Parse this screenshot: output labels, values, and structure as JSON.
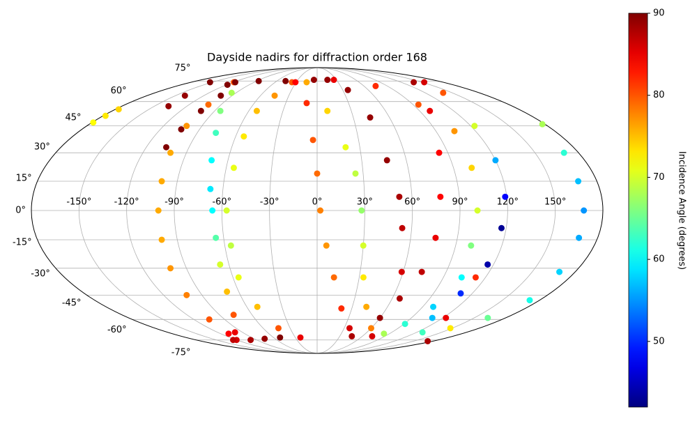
{
  "chart_data": {
    "type": "scatter",
    "projection": "mollweide",
    "title": "Dayside nadirs for diffraction order 168",
    "colorbar_label": "Incidence Angle (degrees)",
    "colormap": "jet",
    "grid": true,
    "xlim": [
      -180,
      180
    ],
    "ylim": [
      -90,
      90
    ],
    "clim": [
      42,
      90
    ],
    "xticks": [
      {
        "value": -150,
        "label": "-150°"
      },
      {
        "value": -120,
        "label": "-120°"
      },
      {
        "value": -90,
        "label": "-90°"
      },
      {
        "value": -60,
        "label": "-60°"
      },
      {
        "value": -30,
        "label": "-30°"
      },
      {
        "value": 0,
        "label": "0°"
      },
      {
        "value": 30,
        "label": "30°"
      },
      {
        "value": 60,
        "label": "60°"
      },
      {
        "value": 90,
        "label": "90°"
      },
      {
        "value": 120,
        "label": "120°"
      },
      {
        "value": 150,
        "label": "150°"
      }
    ],
    "yticks": [
      {
        "value": -75,
        "label": "-75°"
      },
      {
        "value": -60,
        "label": "-60°"
      },
      {
        "value": -45,
        "label": "-45°"
      },
      {
        "value": -30,
        "label": "-30°"
      },
      {
        "value": -15,
        "label": "-15°"
      },
      {
        "value": 0,
        "label": "0°"
      },
      {
        "value": 15,
        "label": "15°"
      },
      {
        "value": 30,
        "label": "30°"
      },
      {
        "value": 45,
        "label": "45°"
      },
      {
        "value": 60,
        "label": "60°"
      },
      {
        "value": 75,
        "label": "75°"
      }
    ],
    "cticks": [
      50,
      60,
      70,
      80,
      90
    ],
    "x": [
      -119,
      -102,
      -102,
      -101,
      -100,
      -100,
      -100,
      -101,
      -102,
      -105,
      -110,
      -120,
      -99,
      -75,
      -51,
      -137,
      -140,
      -153,
      -106,
      -104,
      -102,
      -102,
      -117,
      -179,
      -178,
      -177,
      -95,
      -85,
      -76,
      -71,
      -68,
      -66,
      -65,
      -66,
      -69,
      -77,
      -99,
      -125,
      -36,
      -45,
      -53,
      -54,
      -55,
      -57,
      -56,
      -56,
      -51,
      -43,
      -23,
      -31,
      -10,
      -3,
      0,
      2,
      6,
      12,
      21,
      36,
      46,
      -15,
      9,
      20,
      25,
      28,
      30,
      33,
      42,
      60,
      73,
      16,
      36,
      44,
      47,
      52,
      54,
      59,
      138,
      99,
      84,
      78,
      76,
      73,
      66,
      60,
      26,
      75,
      95,
      104,
      102,
      101,
      100,
      103,
      99,
      91,
      83,
      153,
      140,
      123,
      120,
      119,
      117,
      116,
      111,
      110,
      127,
      178,
      170,
      168,
      168,
      168,
      169,
      172,
      163,
      148,
      172,
      123,
      113,
      -119,
      -87,
      -47,
      -5
    ],
    "y": [
      74,
      58,
      45,
      30,
      15,
      0,
      -15,
      -30,
      -45,
      -60,
      -70,
      -75,
      -75,
      -74,
      -73,
      57,
      64,
      74,
      33,
      43,
      54,
      64,
      74,
      47,
      51,
      55,
      66,
      54,
      41,
      26,
      11,
      0,
      -14,
      -28,
      -43,
      -57,
      -69,
      -75,
      74,
      64,
      54,
      39,
      22,
      0,
      -18,
      -35,
      -52,
      -66,
      -73,
      74,
      59,
      37,
      19,
      0,
      -18,
      -35,
      -53,
      -66,
      -72,
      74,
      54,
      33,
      19,
      0,
      -18,
      -35,
      -52,
      -66,
      -72,
      76,
      68,
      50,
      26,
      7,
      -9,
      -32,
      74,
      54,
      30,
      7,
      -14,
      -32,
      -47,
      -59,
      76,
      71,
      58,
      42,
      22,
      0,
      -18,
      -35,
      -52,
      -63,
      -70,
      74,
      66,
      45,
      26,
      7,
      -9,
      -28,
      -44,
      -59,
      -69,
      46,
      30,
      15,
      0,
      -14,
      -32,
      -48,
      -59,
      -66,
      -76,
      -59,
      -35,
      72,
      75,
      75,
      76
    ],
    "values": [
      80,
      79,
      77,
      76,
      76,
      76,
      76,
      77,
      78,
      80,
      84,
      86,
      88,
      89,
      90,
      89,
      89,
      90,
      90,
      90,
      90,
      90,
      90,
      72,
      73,
      74,
      68,
      66,
      63,
      60,
      59,
      60,
      64,
      70,
      75,
      80,
      85,
      87,
      80,
      77,
      75,
      73,
      71,
      70,
      69,
      71,
      75,
      80,
      85,
      84,
      82,
      80,
      79,
      78,
      77,
      79,
      82,
      86,
      88,
      76,
      74,
      71,
      69,
      67,
      70,
      73,
      76,
      78,
      86,
      89,
      89,
      89,
      89,
      88,
      87,
      86,
      88,
      85,
      84,
      84,
      85,
      87,
      88,
      89,
      85,
      82,
      80,
      77,
      74,
      70,
      66,
      60,
      58,
      62,
      68,
      86,
      80,
      70,
      56,
      48,
      43,
      44,
      50,
      57,
      63,
      68,
      62,
      57,
      55,
      56,
      58,
      61,
      65,
      73,
      88,
      85,
      82,
      90,
      90,
      90,
      89
    ]
  }
}
